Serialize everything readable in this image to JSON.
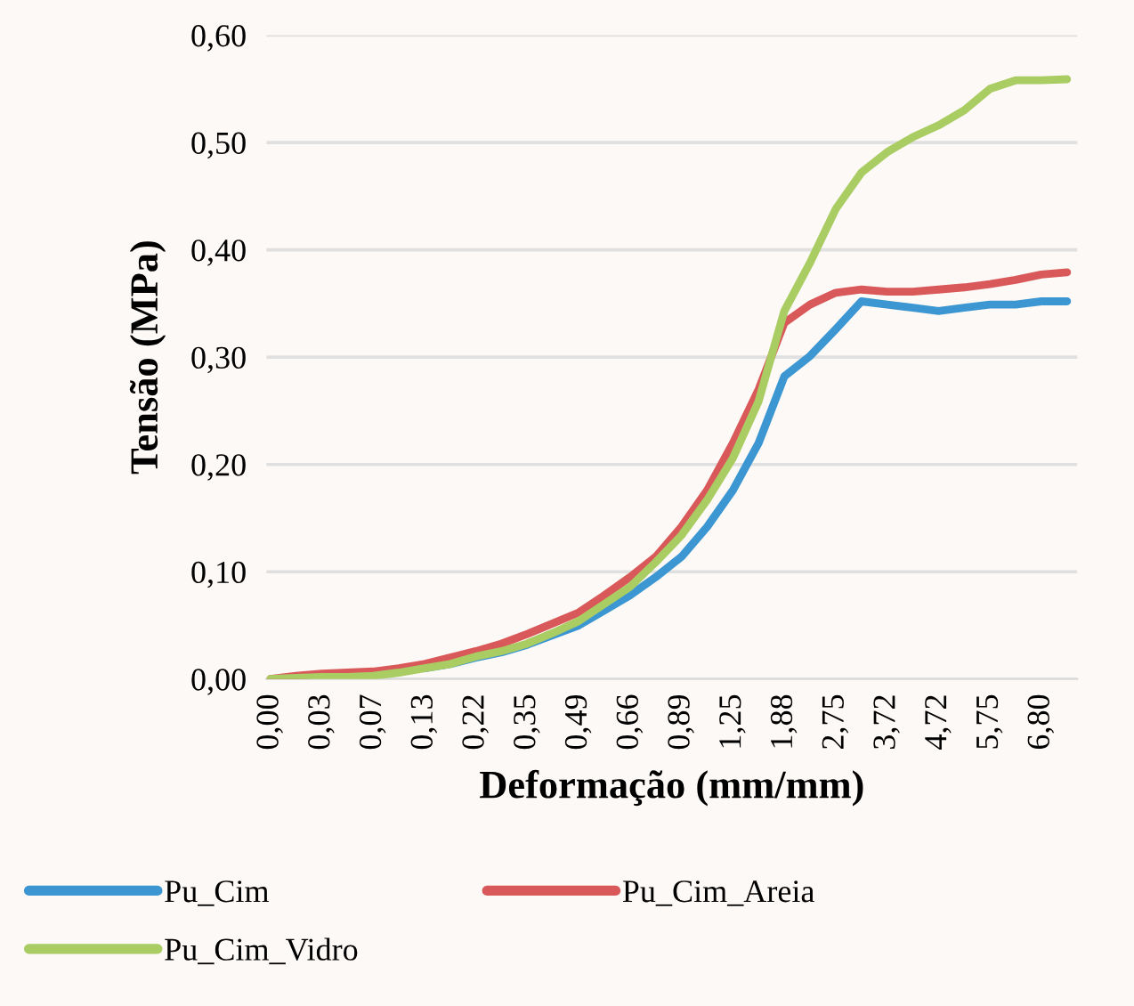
{
  "chart_data": {
    "type": "line",
    "xlabel": "Deformação (mm/mm)",
    "ylabel": "Tensão (MPa)",
    "categories": [
      "0,00",
      null,
      "0,03",
      null,
      "0,07",
      null,
      "0,13",
      null,
      "0,22",
      null,
      "0,35",
      null,
      "0,49",
      null,
      "0,66",
      null,
      "0,89",
      null,
      "1,25",
      null,
      "1,88",
      null,
      "2,75",
      null,
      "3,72",
      null,
      "4,72",
      null,
      "5,75",
      null,
      "6,80",
      null
    ],
    "series": [
      {
        "name": "Pu_Cim",
        "color": "#3b96d2",
        "values": [
          null,
          null,
          null,
          null,
          null,
          null,
          0.01,
          0.014,
          0.02,
          0.025,
          0.032,
          0.041,
          0.05,
          0.064,
          0.078,
          0.095,
          0.114,
          0.142,
          0.176,
          0.22,
          0.282,
          0.301,
          0.326,
          0.352,
          0.349,
          0.346,
          0.343,
          0.346,
          0.349,
          0.349,
          0.352,
          0.352
        ]
      },
      {
        "name": "Pu_Cim_Areia",
        "color": "#d9595a",
        "values": [
          0.0,
          0.003,
          0.005,
          0.006,
          0.007,
          0.01,
          0.014,
          0.02,
          0.026,
          0.033,
          0.042,
          0.052,
          0.062,
          0.078,
          0.095,
          0.114,
          0.142,
          0.176,
          0.22,
          0.27,
          0.332,
          0.349,
          0.36,
          0.363,
          0.361,
          0.361,
          0.363,
          0.365,
          0.368,
          0.372,
          0.377,
          0.379
        ]
      },
      {
        "name": "Pu_Cim_Vidro",
        "color": "#a9cc63",
        "values": [
          0.0,
          0.001,
          0.002,
          0.002,
          0.003,
          0.006,
          0.01,
          0.014,
          0.021,
          0.026,
          0.033,
          0.043,
          0.054,
          0.07,
          0.086,
          0.109,
          0.134,
          0.167,
          0.206,
          0.259,
          0.343,
          0.388,
          0.438,
          0.472,
          0.491,
          0.505,
          0.516,
          0.53,
          0.55,
          0.558,
          0.558,
          0.559
        ]
      }
    ],
    "ylim": [
      0,
      0.6
    ],
    "yticks": [
      {
        "value": 0,
        "label": "0,00"
      },
      {
        "value": 0.1,
        "label": "0,10"
      },
      {
        "value": 0.2,
        "label": "0,20"
      },
      {
        "value": 0.3,
        "label": "0,30"
      },
      {
        "value": 0.4,
        "label": "0,40"
      },
      {
        "value": 0.5,
        "label": "0,50"
      },
      {
        "value": 0.6,
        "label": "0,60"
      }
    ],
    "grid": "y",
    "legend": "bottom",
    "marker": "none",
    "line_style": "solid"
  }
}
